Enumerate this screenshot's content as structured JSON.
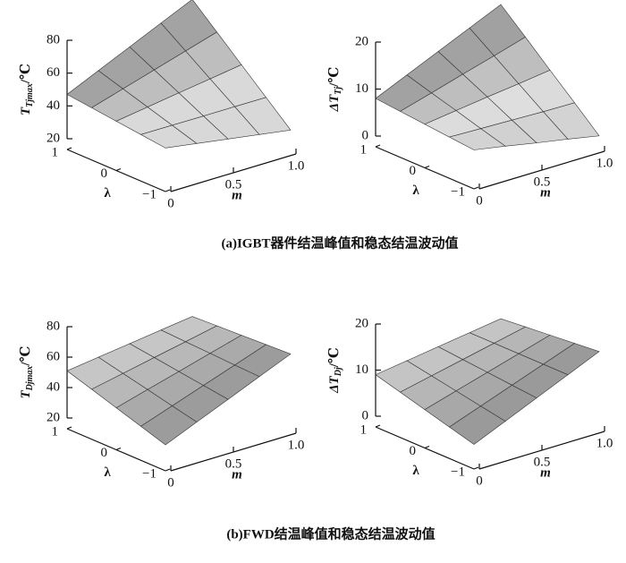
{
  "chart_data": [
    {
      "type": "surface",
      "x": [
        0,
        0.25,
        0.5,
        0.75,
        1
      ],
      "y": [
        -1,
        -0.5,
        0,
        0.5,
        1
      ],
      "z": [
        [
          40,
          37,
          34,
          31,
          28
        ],
        [
          41.8,
          41.7,
          41.6,
          41.6,
          41.5
        ],
        [
          43.5,
          46.4,
          49.3,
          52.1,
          55
        ],
        [
          45.3,
          51.1,
          56.9,
          62.7,
          68.5
        ],
        [
          47,
          55.8,
          64.5,
          73.3,
          82
        ]
      ],
      "xlim": [
        0,
        1
      ],
      "ylim": [
        -1,
        1
      ],
      "zlim": [
        20,
        80
      ],
      "xticks": [
        0,
        0.5,
        {
          "value": 1,
          "label": "1.0"
        }
      ],
      "yticks": [
        {
          "value": -1,
          "label": "−1"
        },
        0,
        1
      ],
      "zticks": [
        20,
        40,
        60,
        80
      ],
      "xlabel": "m",
      "ylabel": "λ",
      "zlabel": [
        "T",
        "Tjmax",
        "/℃"
      ],
      "color": "#e6e6e6"
    },
    {
      "type": "surface",
      "x": [
        0,
        0.25,
        0.5,
        0.75,
        1
      ],
      "y": [
        -1,
        -0.5,
        0,
        0.5,
        1
      ],
      "z": [
        [
          6,
          4.8,
          3.5,
          2.3,
          1
        ],
        [
          6.5,
          6.3,
          6.1,
          5.9,
          5.8
        ],
        [
          7,
          7.9,
          8.8,
          9.6,
          10.5
        ],
        [
          7.5,
          9.4,
          11.4,
          13.3,
          15.3
        ],
        [
          8,
          11,
          14,
          17,
          20
        ]
      ],
      "xlim": [
        0,
        1
      ],
      "ylim": [
        -1,
        1
      ],
      "zlim": [
        0,
        20
      ],
      "xticks": [
        0,
        0.5,
        {
          "value": 1,
          "label": "1.0"
        }
      ],
      "yticks": [
        {
          "value": -1,
          "label": "−1"
        },
        0,
        1
      ],
      "zticks": [
        0,
        10,
        20
      ],
      "xlabel": "m",
      "ylabel": "λ",
      "zlabel": [
        "ΔT",
        "Tj",
        "/℃"
      ],
      "color": "#e6e6e6"
    },
    {
      "type": "surface",
      "x": [
        0,
        0.25,
        0.5,
        0.75,
        1
      ],
      "y": [
        -1,
        -0.5,
        0,
        0.5,
        1
      ],
      "z": [
        [
          30,
          38.8,
          47.5,
          56.3,
          65
        ],
        [
          35.3,
          42.5,
          49.8,
          57,
          64.3
        ],
        [
          40.5,
          46.3,
          52,
          57.8,
          63.5
        ],
        [
          45.8,
          50,
          54.3,
          58.5,
          62.8
        ],
        [
          51,
          53.8,
          56.5,
          59.3,
          62
        ]
      ],
      "xlim": [
        0,
        1
      ],
      "ylim": [
        -1,
        1
      ],
      "zlim": [
        20,
        80
      ],
      "xticks": [
        0,
        0.5,
        {
          "value": 1,
          "label": "1.0"
        }
      ],
      "yticks": [
        {
          "value": -1,
          "label": "−1"
        },
        0,
        1
      ],
      "zticks": [
        20,
        40,
        60,
        80
      ],
      "xlabel": "m",
      "ylabel": "λ",
      "zlabel": [
        "T",
        "Djmax",
        "/℃"
      ],
      "color": "#e6e6e6"
    },
    {
      "type": "surface",
      "x": [
        0,
        0.25,
        0.5,
        0.75,
        1
      ],
      "y": [
        -1,
        -0.5,
        0,
        0.5,
        1
      ],
      "z": [
        [
          3,
          6,
          9,
          12,
          15
        ],
        [
          4.5,
          7,
          9.5,
          12,
          14.5
        ],
        [
          6,
          8,
          10,
          12,
          14
        ],
        [
          7.5,
          9,
          10.5,
          12,
          13.5
        ],
        [
          9,
          10,
          11,
          12,
          13
        ]
      ],
      "xlim": [
        0,
        1
      ],
      "ylim": [
        -1,
        1
      ],
      "zlim": [
        0,
        20
      ],
      "xticks": [
        0,
        0.5,
        {
          "value": 1,
          "label": "1.0"
        }
      ],
      "yticks": [
        {
          "value": -1,
          "label": "−1"
        },
        0,
        1
      ],
      "zticks": [
        0,
        10,
        20
      ],
      "xlabel": "m",
      "ylabel": "λ",
      "zlabel": [
        "ΔT",
        "Dj",
        "/℃"
      ],
      "color": "#e6e6e6"
    }
  ],
  "captions": [
    "(a)IGBT器件结温峰值和稳态结温波动值",
    "(b)FWD结温峰值和稳态结温波动值"
  ]
}
